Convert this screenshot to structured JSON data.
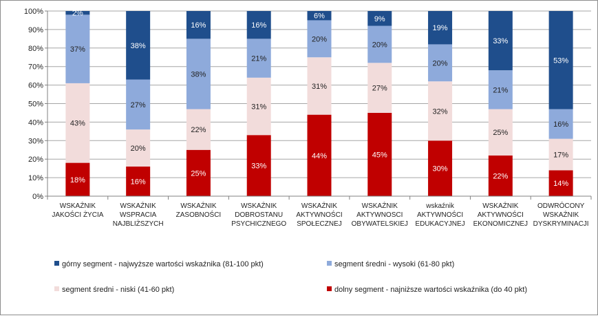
{
  "chart_data": {
    "type": "bar",
    "stacked": true,
    "percent": true,
    "title": "",
    "xlabel": "",
    "ylabel": "",
    "ylim": [
      0,
      100
    ],
    "yticks": [
      "0%",
      "10%",
      "20%",
      "30%",
      "40%",
      "50%",
      "60%",
      "70%",
      "80%",
      "90%",
      "100%"
    ],
    "grid": true,
    "legend_position": "bottom",
    "categories": [
      [
        "WSKAŹNIK",
        "JAKOŚCI ŻYCIA"
      ],
      [
        "WSKAŹNIK",
        "WSPRACIA",
        "NAJBLIŻSZYCH"
      ],
      [
        "WSKAŹNIK",
        "ZASOBNOŚCI"
      ],
      [
        "WSKAŹNIK",
        "DOBROSTANU",
        "PSYCHICZNEGO"
      ],
      [
        "WSKAŹNIK",
        "AKTYWNOŚCI",
        "SPOŁECZNEJ"
      ],
      [
        "WSKAŹNIK",
        "AKTYWNOSCI",
        "OBYWATELSKIEJ"
      ],
      [
        "wskaźnik",
        "AKTYWNOŚCI",
        "EDUKACYJNEJ"
      ],
      [
        "WSKAŹNIK",
        "AKTYWNOŚCI",
        "EKONOMICZNEJ"
      ],
      [
        "ODWRÓCONY",
        "WSKAŹNIK",
        "DYSKRYMINACJI"
      ]
    ],
    "series": [
      {
        "name": "dolny segment - najniższe wartości wskaźnika (do 40 pkt)",
        "color": "#c00000",
        "label_color": "#ffffff",
        "values": [
          18,
          16,
          25,
          33,
          44,
          45,
          30,
          22,
          14
        ],
        "labels": [
          "18%",
          "16%",
          "25%",
          "33%",
          "44%",
          "45%",
          "30%",
          "22%",
          "14%"
        ]
      },
      {
        "name": "segment średni - niski (41-60 pkt)",
        "color": "#f2dcdb",
        "label_color": "#222222",
        "values": [
          43,
          20,
          22,
          31,
          31,
          27,
          32,
          25,
          17
        ],
        "labels": [
          "43%",
          "20%",
          "22%",
          "31%",
          "31%",
          "27%",
          "32%",
          "25%",
          "17%"
        ]
      },
      {
        "name": "segment średni - wysoki (61-80 pkt)",
        "color": "#8eaadb",
        "label_color": "#222222",
        "values": [
          37,
          27,
          38,
          21,
          20,
          20,
          20,
          21,
          16
        ],
        "labels": [
          "37%",
          "27%",
          "38%",
          "21%",
          "20%",
          "20%",
          "20%",
          "21%",
          "16%"
        ]
      },
      {
        "name": "górny segment - najwyższe wartości wskaźnika (81-100 pkt)",
        "color": "#1f4e8c",
        "label_color": "#ffffff",
        "values": [
          2,
          38,
          16,
          16,
          6,
          9,
          19,
          33,
          53
        ],
        "labels": [
          "2%",
          "38%",
          "16%",
          "16%",
          "6%",
          "9%",
          "19%",
          "33%",
          "53%"
        ]
      }
    ],
    "legend_order": [
      3,
      2,
      1,
      0
    ]
  }
}
